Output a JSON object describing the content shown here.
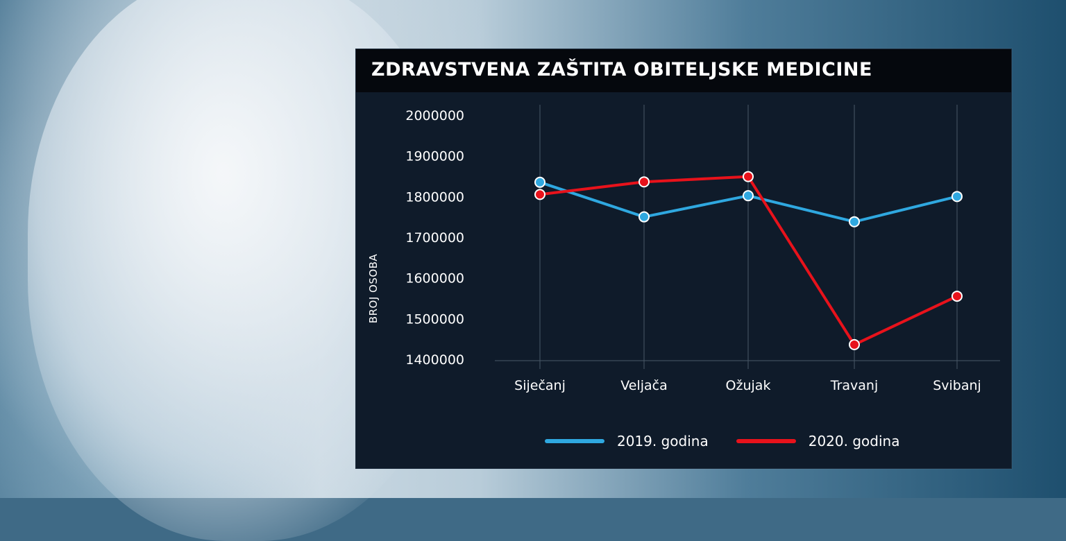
{
  "title": "ZDRAVSTVENA ZAŠTITA OBITELJSKE MEDICINE",
  "chart_data": {
    "type": "line",
    "title": "ZDRAVSTVENA ZAŠTITA OBITELJSKE MEDICINE",
    "xlabel": "",
    "ylabel": "BROJ OSOBA",
    "categories": [
      "Siječanj",
      "Veljača",
      "Ožujak",
      "Travanj",
      "Svibanj"
    ],
    "ylim": [
      1400000,
      2000000
    ],
    "yticks": [
      "2000000",
      "1900000",
      "1800000",
      "1700000",
      "1600000",
      "1500000",
      "1400000"
    ],
    "grid": "vertical",
    "legend_position": "bottom",
    "series": [
      {
        "name": "2019. godina",
        "color": "#2fa8e0",
        "values": [
          1835000,
          1750000,
          1802000,
          1738000,
          1800000
        ]
      },
      {
        "name": "2020. godina",
        "color": "#e8121b",
        "values": [
          1805000,
          1836000,
          1849000,
          1436000,
          1555000
        ]
      }
    ]
  }
}
